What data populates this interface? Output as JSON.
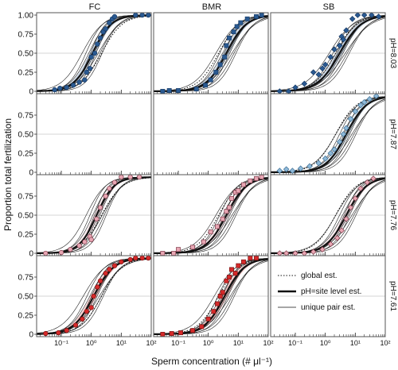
{
  "chart_data": {
    "type": "scatter",
    "layout": "facet-grid 4 rows x 3 columns",
    "column_labels": [
      "FC",
      "BMR",
      "SB"
    ],
    "row_labels": [
      "pH=8.03",
      "pH=7.87",
      "pH=7.76",
      "pH=7.61"
    ],
    "xlabel": "Sperm concentration (# μl⁻¹)",
    "ylabel": "Proportion total fertilization",
    "x_scale": "log",
    "xlim": [
      0.015,
      100
    ],
    "ylim": [
      0,
      1
    ],
    "x_ticks": [
      0.1,
      1,
      10,
      100
    ],
    "x_tick_labels": [
      "10⁻¹",
      "10⁰",
      "10¹",
      "10²"
    ],
    "y_ticks": [
      0,
      0.25,
      0.5,
      0.75,
      1.0
    ],
    "y_tick_labels": [
      "0",
      "0.25",
      "0.50",
      "0.75",
      "1.00"
    ],
    "grid": "horizontal line at 0.5",
    "legend": {
      "placement": "in bottom-right panel (pH=7.61, SB)",
      "entries": [
        {
          "label": "global est.",
          "style": "dotted"
        },
        {
          "label": "pH=site level est.",
          "style": "thick solid"
        },
        {
          "label": "unique pair est.",
          "style": "thin solid"
        }
      ]
    },
    "row_colors": [
      "#2a5a92",
      "#8fb9d8",
      "#e8a6b3",
      "#d62a2a"
    ],
    "row_edge_colors": [
      "#173a66",
      "#3d6f96",
      "#7e3b4a",
      "#7a1010"
    ],
    "panels": [
      {
        "row": 0,
        "col": 0,
        "has_data": true,
        "ec50": 1.1,
        "slope": 1.4,
        "points": [
          [
            0.06,
            0.02
          ],
          [
            0.09,
            0.04
          ],
          [
            0.15,
            0.05
          ],
          [
            0.25,
            0.08
          ],
          [
            0.4,
            0.12
          ],
          [
            0.6,
            0.15
          ],
          [
            0.7,
            0.25
          ],
          [
            0.9,
            0.3
          ],
          [
            1.0,
            0.45
          ],
          [
            1.3,
            0.5
          ],
          [
            1.6,
            0.62
          ],
          [
            2.0,
            0.7
          ],
          [
            2.5,
            0.78
          ],
          [
            3.0,
            0.82
          ],
          [
            4.0,
            0.9
          ],
          [
            5.0,
            0.95
          ],
          [
            6.0,
            0.98
          ],
          [
            30,
            1.0
          ],
          [
            50,
            1.0
          ],
          [
            80,
            1.0
          ]
        ]
      },
      {
        "row": 0,
        "col": 1,
        "has_data": true,
        "ec50": 4.0,
        "slope": 1.3,
        "points": [
          [
            0.03,
            0.0
          ],
          [
            0.05,
            0.01
          ],
          [
            0.1,
            0.01
          ],
          [
            0.4,
            0.03
          ],
          [
            0.8,
            0.08
          ],
          [
            1.2,
            0.15
          ],
          [
            1.8,
            0.25
          ],
          [
            2.5,
            0.35
          ],
          [
            3.5,
            0.45
          ],
          [
            4.0,
            0.6
          ],
          [
            5.0,
            0.7
          ],
          [
            7.0,
            0.78
          ],
          [
            9.0,
            0.85
          ],
          [
            12,
            0.9
          ],
          [
            20,
            0.95
          ],
          [
            40,
            0.98
          ],
          [
            60,
            1.0
          ]
        ]
      },
      {
        "row": 0,
        "col": 2,
        "has_data": true,
        "ec50": 3.0,
        "slope": 1.2,
        "points": [
          [
            0.03,
            0.0
          ],
          [
            0.06,
            0.0
          ],
          [
            0.1,
            0.05
          ],
          [
            0.2,
            0.1
          ],
          [
            0.4,
            0.25
          ],
          [
            0.6,
            0.22
          ],
          [
            0.8,
            0.3
          ],
          [
            1.0,
            0.35
          ],
          [
            1.5,
            0.45
          ],
          [
            2.0,
            0.55
          ],
          [
            3.0,
            0.6
          ],
          [
            3.5,
            0.72
          ],
          [
            4.0,
            0.68
          ],
          [
            5.0,
            0.8
          ],
          [
            8.0,
            0.95
          ],
          [
            12,
            1.0
          ],
          [
            20,
            1.0
          ],
          [
            35,
            1.0
          ],
          [
            60,
            0.98
          ]
        ]
      },
      {
        "row": 1,
        "col": 0,
        "has_data": false
      },
      {
        "row": 1,
        "col": 1,
        "has_data": false
      },
      {
        "row": 1,
        "col": 2,
        "has_data": true,
        "ec50": 5.0,
        "slope": 1.3,
        "points": [
          [
            0.03,
            0.02
          ],
          [
            0.05,
            0.04
          ],
          [
            0.08,
            0.02
          ],
          [
            0.15,
            0.05
          ],
          [
            0.3,
            0.08
          ],
          [
            0.6,
            0.12
          ],
          [
            1.0,
            0.18
          ],
          [
            1.5,
            0.25
          ],
          [
            2.0,
            0.3
          ],
          [
            3.0,
            0.4
          ],
          [
            4.0,
            0.5
          ],
          [
            5.0,
            0.58
          ],
          [
            7.0,
            0.7
          ],
          [
            10,
            0.8
          ],
          [
            15,
            0.88
          ],
          [
            20,
            0.92
          ],
          [
            30,
            0.96
          ],
          [
            50,
            1.0
          ]
        ]
      },
      {
        "row": 2,
        "col": 0,
        "has_data": true,
        "ec50": 1.5,
        "slope": 1.5,
        "points": [
          [
            0.03,
            0.0
          ],
          [
            0.1,
            0.01
          ],
          [
            0.2,
            0.05
          ],
          [
            0.4,
            0.1
          ],
          [
            0.6,
            0.15
          ],
          [
            0.9,
            0.22
          ],
          [
            1.0,
            0.18
          ],
          [
            1.5,
            0.45
          ],
          [
            2.0,
            0.6
          ],
          [
            3.0,
            0.75
          ],
          [
            4.0,
            0.85
          ],
          [
            6.0,
            0.93
          ],
          [
            10,
            1.0
          ],
          [
            20,
            1.0
          ],
          [
            40,
            1.0
          ]
        ]
      },
      {
        "row": 2,
        "col": 1,
        "has_data": true,
        "ec50": 4.0,
        "slope": 1.3,
        "points": [
          [
            0.03,
            0.0
          ],
          [
            0.07,
            0.0
          ],
          [
            0.1,
            0.05
          ],
          [
            0.3,
            0.08
          ],
          [
            0.7,
            0.15
          ],
          [
            1.2,
            0.28
          ],
          [
            2.0,
            0.35
          ],
          [
            3.0,
            0.45
          ],
          [
            4.0,
            0.55
          ],
          [
            5.0,
            0.6
          ],
          [
            6.0,
            0.72
          ],
          [
            8.0,
            0.8
          ],
          [
            10,
            0.82
          ],
          [
            15,
            0.9
          ],
          [
            25,
            0.95
          ],
          [
            40,
            0.98
          ],
          [
            60,
            1.0
          ]
        ]
      },
      {
        "row": 2,
        "col": 2,
        "has_data": true,
        "ec50": 5.0,
        "slope": 1.3,
        "points": [
          [
            0.03,
            0.0
          ],
          [
            0.05,
            0.0
          ],
          [
            0.1,
            0.0
          ],
          [
            0.2,
            0.0
          ],
          [
            0.4,
            0.02
          ],
          [
            0.8,
            0.05
          ],
          [
            1.5,
            0.12
          ],
          [
            2.5,
            0.2
          ],
          [
            3.5,
            0.3
          ],
          [
            5.0,
            0.45
          ],
          [
            7.0,
            0.6
          ],
          [
            10,
            0.72
          ],
          [
            15,
            0.85
          ],
          [
            25,
            0.93
          ],
          [
            40,
            0.98
          ]
        ]
      },
      {
        "row": 3,
        "col": 0,
        "has_data": true,
        "ec50": 1.2,
        "slope": 1.3,
        "points": [
          [
            0.03,
            0.01
          ],
          [
            0.08,
            0.02
          ],
          [
            0.15,
            0.05
          ],
          [
            0.3,
            0.12
          ],
          [
            0.5,
            0.2
          ],
          [
            0.7,
            0.3
          ],
          [
            1.0,
            0.35
          ],
          [
            1.2,
            0.5
          ],
          [
            1.6,
            0.62
          ],
          [
            2.0,
            0.7
          ],
          [
            3.0,
            0.8
          ],
          [
            4.0,
            0.85
          ],
          [
            6.0,
            0.9
          ],
          [
            10,
            0.95
          ],
          [
            20,
            0.98
          ],
          [
            30,
            1.0
          ],
          [
            50,
            1.0
          ],
          [
            80,
            1.0
          ]
        ]
      },
      {
        "row": 3,
        "col": 1,
        "has_data": true,
        "ec50": 3.5,
        "slope": 1.3,
        "points": [
          [
            0.03,
            0.0
          ],
          [
            0.06,
            0.01
          ],
          [
            0.12,
            0.02
          ],
          [
            0.3,
            0.05
          ],
          [
            0.6,
            0.1
          ],
          [
            1.0,
            0.2
          ],
          [
            1.5,
            0.3
          ],
          [
            2.0,
            0.4
          ],
          [
            2.5,
            0.5
          ],
          [
            3.0,
            0.55
          ],
          [
            4.0,
            0.7
          ],
          [
            5.0,
            0.75
          ],
          [
            6.0,
            0.85
          ],
          [
            8.0,
            0.8
          ],
          [
            10,
            0.9
          ],
          [
            15,
            0.95
          ],
          [
            25,
            1.0
          ],
          [
            40,
            1.0
          ]
        ]
      },
      {
        "row": 3,
        "col": 2,
        "has_data": false
      }
    ]
  }
}
